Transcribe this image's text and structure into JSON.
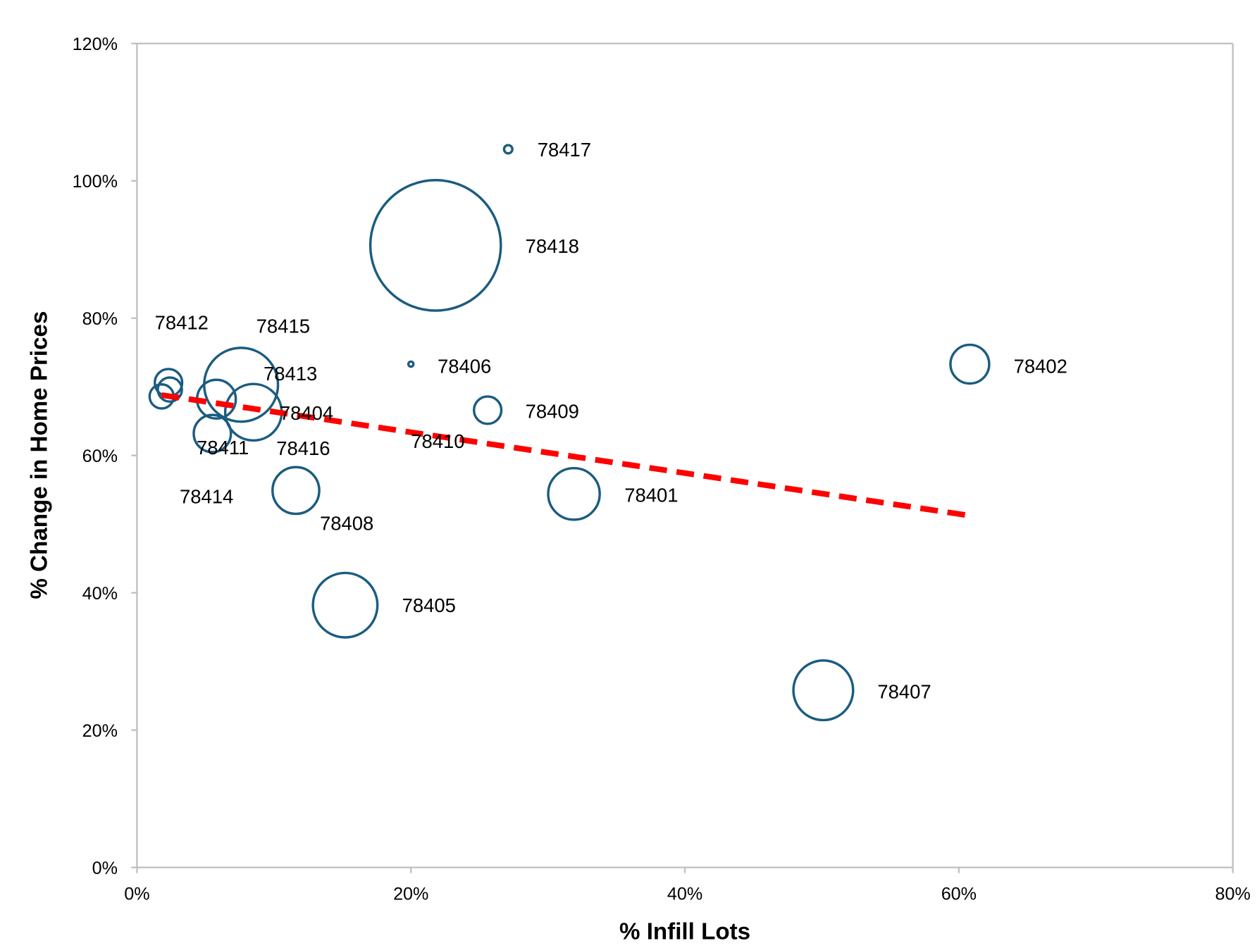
{
  "chart_data": {
    "type": "bubble",
    "xlabel": "% Infill Lots",
    "ylabel": "% Change in Home Prices",
    "xlim": [
      0,
      80
    ],
    "ylim": [
      0,
      120
    ],
    "xticks": [
      "0%",
      "20%",
      "40%",
      "60%",
      "80%"
    ],
    "yticks": [
      "0%",
      "20%",
      "40%",
      "60%",
      "80%",
      "100%",
      "120%"
    ],
    "grid": false,
    "legend": "none",
    "colors": {
      "bubble": "#1b5c80",
      "trendline": "#ff0000",
      "axis": "#bfbfbf"
    },
    "points": [
      {
        "label": "78417",
        "x": 27.1,
        "y": 104.6,
        "size": 0.4
      },
      {
        "label": "78418",
        "x": 21.8,
        "y": 90.6,
        "size": 100
      },
      {
        "label": "78412",
        "x": 2.3,
        "y": 70.6,
        "size": 4.4
      },
      {
        "label": "78415",
        "x": 7.6,
        "y": 70.3,
        "size": 32
      },
      {
        "label": "78406",
        "x": 20.0,
        "y": 73.3,
        "size": 0.15
      },
      {
        "label": "78402",
        "x": 60.8,
        "y": 73.3,
        "size": 8.8
      },
      {
        "label": "78413",
        "x": 5.8,
        "y": 68.2,
        "size": 8.8
      },
      {
        "label": "78409",
        "x": 25.6,
        "y": 66.6,
        "size": 4.4
      },
      {
        "label": "78404",
        "x": 8.5,
        "y": 66.3,
        "size": 18.7
      },
      {
        "label": "78410",
        "x": 18.3,
        "y": 62.0,
        "size": 0
      },
      {
        "label": "78411",
        "x": 5.5,
        "y": 63.2,
        "size": 8.1
      },
      {
        "label": "78416",
        "x": 2.4,
        "y": 69.6,
        "size": 3.4
      },
      {
        "label": "78414",
        "x": 1.8,
        "y": 68.6,
        "size": 3.4
      },
      {
        "label": "78401",
        "x": 31.9,
        "y": 54.4,
        "size": 15.6
      },
      {
        "label": "78408",
        "x": 11.6,
        "y": 54.9,
        "size": 12.8
      },
      {
        "label": "78405",
        "x": 15.2,
        "y": 38.2,
        "size": 24.4
      },
      {
        "label": "78407",
        "x": 50.1,
        "y": 25.8,
        "size": 20.9
      }
    ],
    "trendline": {
      "style": "dashed",
      "x": [
        1.8,
        60.6
      ],
      "y": [
        68.8,
        51.3
      ]
    }
  }
}
